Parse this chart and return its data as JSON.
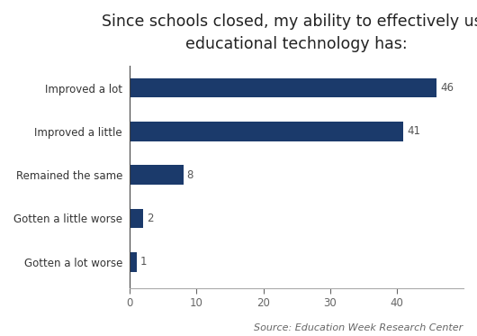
{
  "title": "Since schools closed, my ability to effectively use\neducational technology has:",
  "categories": [
    "Gotten a lot worse",
    "Gotten a little worse",
    "Remained the same",
    "Improved a little",
    "Improved a lot"
  ],
  "values": [
    1,
    2,
    8,
    41,
    46
  ],
  "bar_color": "#1b3a6b",
  "value_labels": [
    "1",
    "2",
    "8",
    "41",
    "46"
  ],
  "xlim": [
    0,
    50
  ],
  "xticks": [
    0,
    10,
    20,
    30,
    40
  ],
  "source_text": "Source: Education Week Research Center",
  "title_fontsize": 12.5,
  "label_fontsize": 8.5,
  "value_fontsize": 8.5,
  "source_fontsize": 8,
  "bar_height": 0.45,
  "background_color": "#ffffff"
}
